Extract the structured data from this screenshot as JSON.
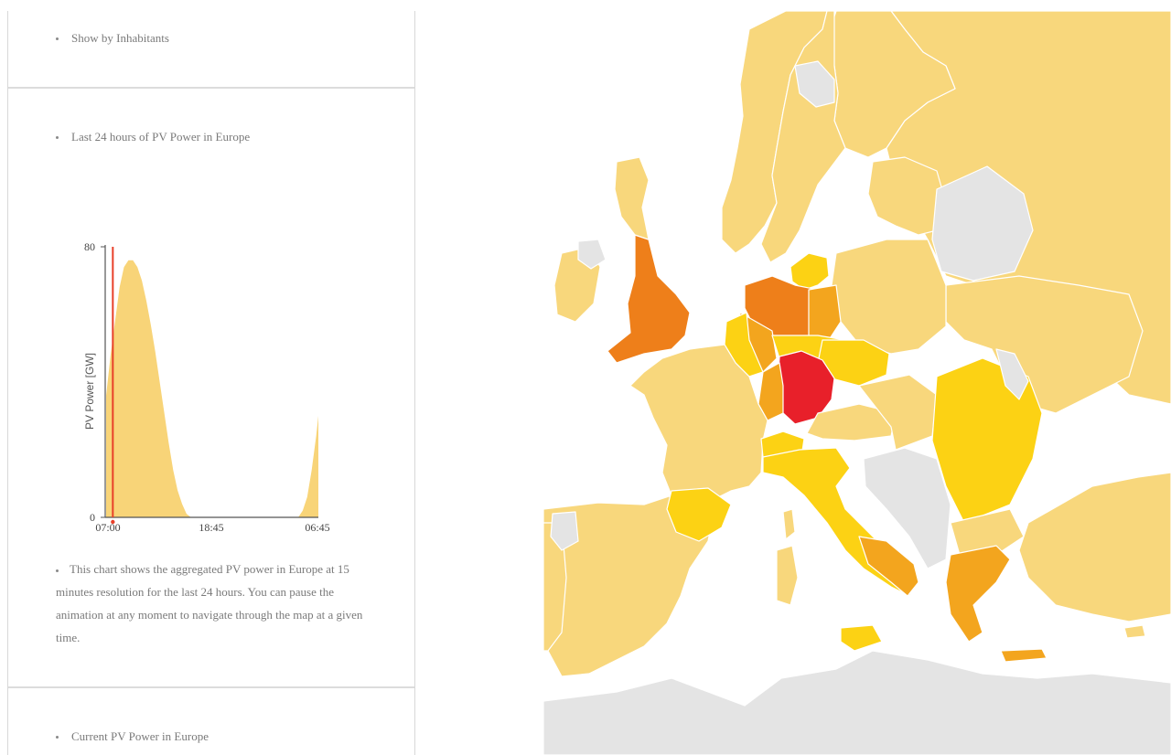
{
  "sidebar": {
    "show_by_inhabitants": "Show by Inhabitants",
    "chart_section_title": "Last 24 hours of PV Power in Europe",
    "chart_description": "This chart shows the aggregated PV power in Europe at 15 minutes resolution for the last 24 hours. You can pause the animation at any moment to navigate through the map at a given time.",
    "current_section_title": "Current PV Power in Europe"
  },
  "chart_data": {
    "type": "area",
    "ylabel": "PV Power [GW]",
    "xlabel": "",
    "ylim": [
      0,
      80
    ],
    "y_ticks": [
      "80",
      "0"
    ],
    "x_ticks": [
      "07:00",
      "18:45",
      "06:45"
    ],
    "x_hours": [
      0,
      0.5,
      1,
      1.5,
      2,
      2.5,
      3,
      3.5,
      4,
      4.5,
      5,
      5.5,
      6,
      6.5,
      7,
      7.5,
      8,
      8.5,
      9,
      9.5,
      10,
      10.5,
      11,
      11.5,
      12,
      12.5,
      13,
      13.5,
      14,
      14.5,
      15,
      15.5,
      16,
      16.5,
      17,
      17.5,
      18,
      18.5,
      19,
      19.5,
      20,
      20.5,
      21,
      21.5,
      22,
      22.5,
      23,
      23.5,
      23.75
    ],
    "values": [
      36,
      48,
      58,
      68,
      74,
      76,
      76,
      74,
      70,
      64,
      57,
      49,
      40,
      31,
      22,
      14,
      8,
      4,
      1,
      0,
      0,
      0,
      0,
      0,
      0,
      0,
      0,
      0,
      0,
      0,
      0,
      0,
      0,
      0,
      0,
      0,
      0,
      0,
      0,
      0,
      0,
      0,
      0,
      0,
      2,
      6,
      14,
      24,
      30
    ],
    "current_marker_hour": 0.75,
    "colors": {
      "area": "#f8d478",
      "marker": "#e8402a",
      "axis": "#555555"
    }
  },
  "map": {
    "colors": {
      "sea": "#ffffff",
      "no_data": "#e4e4e4",
      "low": "#f8d77c",
      "medium": "#fcd214",
      "high": "#f3a51e",
      "very_high": "#ee7f1a",
      "max": "#e8202a",
      "borders": "#ffffff"
    }
  }
}
